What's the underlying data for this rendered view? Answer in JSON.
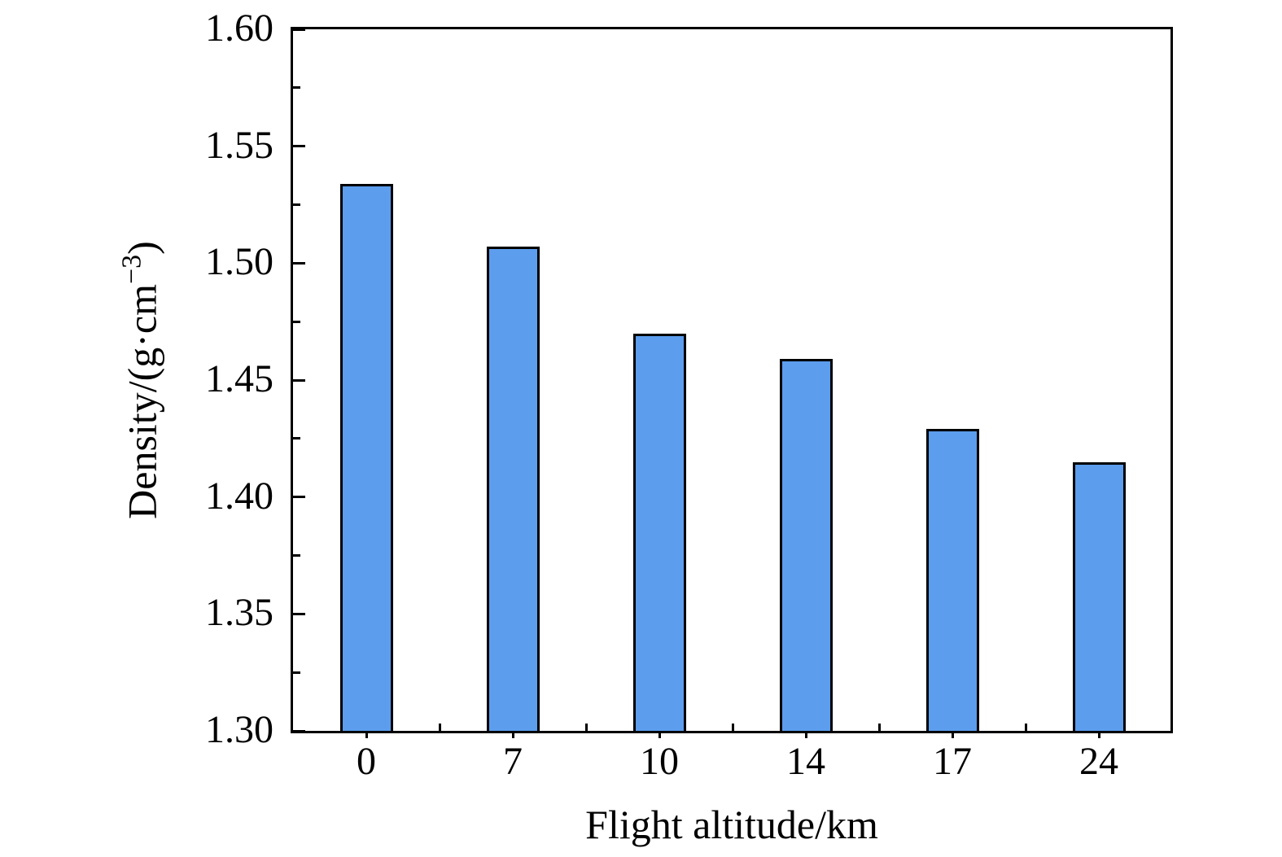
{
  "chart_data": {
    "type": "bar",
    "title": "",
    "xlabel": "Flight altitude/km",
    "ylabel": "Density/(g·cm⁻³)",
    "ylabel_parts": {
      "pre": "Density/(g·cm",
      "sup": "−3",
      "post": ")"
    },
    "categories": [
      "0",
      "7",
      "10",
      "14",
      "17",
      "24"
    ],
    "values": [
      1.534,
      1.507,
      1.47,
      1.459,
      1.429,
      1.415
    ],
    "ylim": [
      1.3,
      1.6
    ],
    "y_major_step": 0.05,
    "y_minor_step": 0.025,
    "y_tick_labels": [
      "1.60",
      "1.55",
      "1.50",
      "1.45",
      "1.40",
      "1.35",
      "1.30"
    ],
    "grid": false,
    "legend": null,
    "colors": {
      "bar_fill": "#5c9ded",
      "bar_edge": "#000000",
      "axis": "#000000",
      "text": "#000000",
      "background": "#ffffff"
    }
  }
}
